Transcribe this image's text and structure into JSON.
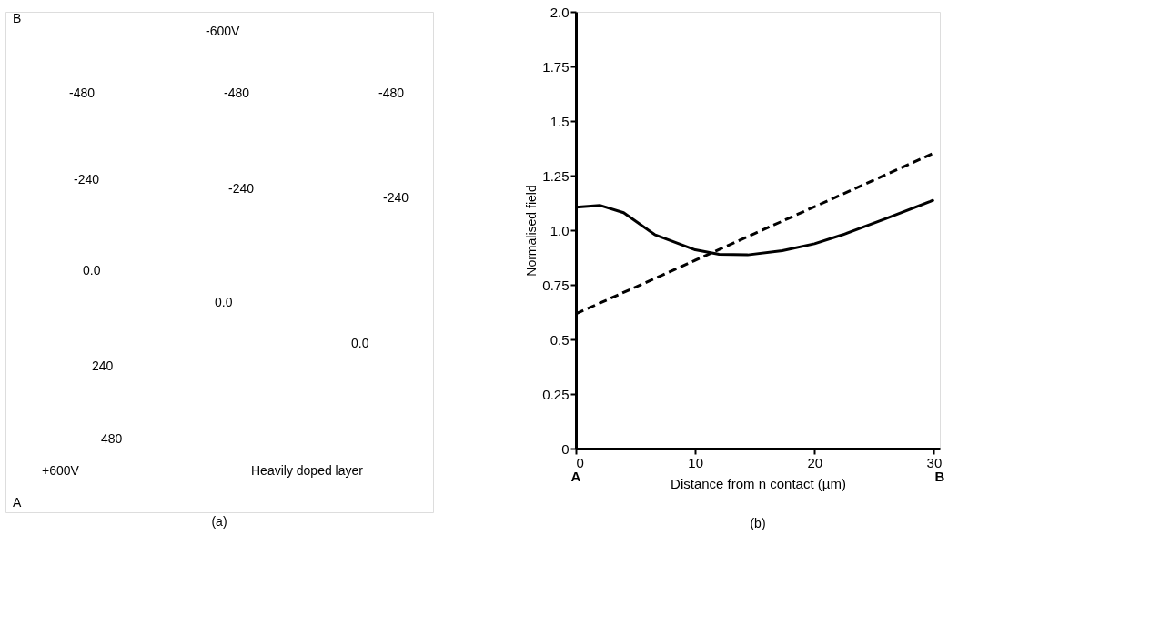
{
  "chart_data": [
    {
      "type": "other",
      "title": "(a)",
      "annotations": [
        "B",
        "-600V",
        "-480",
        "-480",
        "-480",
        "-240",
        "-240",
        "-240",
        "0.0",
        "0.0",
        "0.0",
        "240",
        "480",
        "+600V",
        "Heavily doped layer",
        "A"
      ]
    },
    {
      "type": "line",
      "title": "(b)",
      "xlabel": "Distance from n contact (µm)",
      "ylabel": "Normalised field",
      "xlim": [
        0,
        30.5
      ],
      "xticks": [
        0,
        10,
        20,
        30
      ],
      "ylim": [
        0,
        2.0
      ],
      "yticks": [
        0,
        0.25,
        {
          "value": 0.5,
          "label": "0.5"
        },
        0.75,
        {
          "value": 1.0,
          "label": "1.0"
        },
        1.25,
        {
          "value": 1.5,
          "label": "1.5"
        },
        1.75,
        {
          "value": 2.0,
          "label": "2.0"
        }
      ],
      "series": [
        {
          "color": "#000000",
          "line_style": "solid",
          "x": [
            0,
            2,
            4,
            6.6,
            10,
            12,
            14.4,
            17.3,
            20,
            22.4,
            26,
            29.7,
            30
          ],
          "values": [
            1.105,
            1.114,
            1.08,
            0.98,
            0.91,
            0.89,
            0.887,
            0.906,
            0.938,
            0.98,
            1.054,
            1.132,
            1.139
          ]
        },
        {
          "color": "#000000",
          "line_style": "dashed",
          "x": [
            0,
            30
          ],
          "values": [
            0.617,
            1.353
          ]
        }
      ],
      "annotations": [
        "A",
        "B"
      ]
    }
  ]
}
